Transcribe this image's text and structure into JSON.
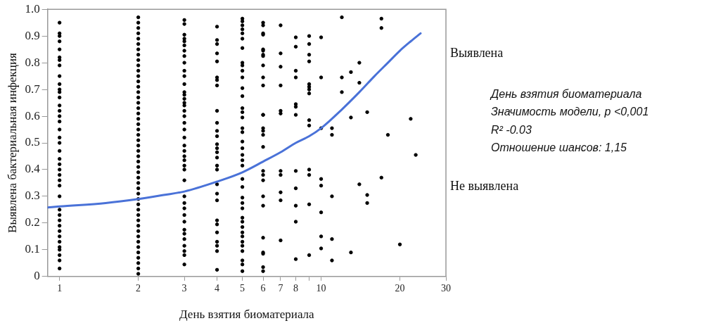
{
  "chart_data": {
    "type": "scatter",
    "xlabel": "День взятия биоматериала",
    "ylabel": "Выявлена бактериальная инфекция",
    "log": "x",
    "xlim": [
      0.9,
      30
    ],
    "xticks": [
      1,
      2,
      3,
      4,
      5,
      6,
      7,
      8,
      {
        "value": 9,
        "label": null
      },
      10,
      20,
      30
    ],
    "ylim": [
      0,
      1
    ],
    "yticks": [
      0,
      0.1,
      0.2,
      0.3,
      0.4,
      0.5,
      0.6,
      0.7,
      0.8,
      0.9,
      {
        "value": 1,
        "label": "1.0"
      }
    ],
    "grid": false,
    "legend": false,
    "marker": "circle",
    "annotations": [
      "Выявлена",
      "День взятия биоматериала",
      "Значимость модели, p <0,001",
      "R² -0.03",
      "Отношение шансов: 1,15",
      "Не выявлена"
    ],
    "series": [
      {
        "type": "scatter",
        "color": "#000000",
        "x": [
          1,
          1,
          1,
          1,
          1,
          1,
          1,
          1,
          1,
          1,
          1,
          1,
          1,
          1,
          1,
          1,
          1,
          1,
          1,
          1,
          1,
          1,
          1,
          1,
          1,
          1,
          1,
          1,
          1,
          1,
          1,
          1,
          1,
          1,
          1,
          1,
          1,
          1,
          1,
          1,
          2,
          2,
          2,
          2,
          2,
          2,
          2,
          2,
          2,
          2,
          2,
          2,
          2,
          2,
          2,
          2,
          2,
          2,
          2,
          2,
          2,
          2,
          2,
          2,
          2,
          2,
          2,
          2,
          2,
          2,
          2,
          2,
          2,
          2,
          2,
          2,
          2,
          2,
          2,
          2,
          2,
          2,
          2,
          2,
          2,
          2,
          2,
          2,
          2,
          3,
          3,
          3,
          3,
          3,
          3,
          3,
          3,
          3,
          3,
          3,
          3,
          3,
          3,
          3,
          3,
          3,
          3,
          3,
          3,
          3,
          3,
          3,
          3,
          3,
          3,
          3,
          3,
          3,
          3,
          3,
          3,
          3,
          3,
          3,
          3,
          3,
          3,
          3,
          3,
          3,
          4,
          4,
          4,
          4,
          4,
          4,
          4,
          4,
          4,
          4,
          4,
          4,
          4,
          4,
          4,
          4,
          4,
          4,
          4,
          4,
          4,
          4,
          4,
          4,
          4,
          4,
          4,
          4,
          5,
          5,
          5,
          5,
          5,
          5,
          5,
          5,
          5,
          5,
          5,
          5,
          5,
          5,
          5,
          5,
          5,
          5,
          5,
          5,
          5,
          5,
          5,
          5,
          5,
          5,
          5,
          5,
          5,
          5,
          5,
          5,
          5,
          5,
          5,
          5,
          5,
          5,
          5,
          6,
          6,
          6,
          6,
          6,
          6,
          6,
          6,
          6,
          6,
          6,
          6,
          6,
          6,
          6,
          6,
          6,
          6,
          6,
          6,
          6,
          6,
          6,
          6,
          6,
          6,
          6,
          7,
          7,
          7,
          7,
          7,
          7,
          7,
          7,
          7,
          7,
          7,
          8,
          8,
          8,
          8,
          8,
          8,
          8,
          8,
          8,
          8,
          8,
          8,
          9,
          9,
          9,
          9,
          9,
          9,
          9,
          9,
          9,
          9,
          9,
          9,
          9,
          9,
          10,
          10,
          10,
          10,
          10,
          10,
          10,
          10,
          11,
          11,
          11,
          11,
          11,
          12,
          12,
          12,
          13,
          13,
          13,
          14,
          14,
          14,
          15,
          15,
          15,
          17,
          17,
          17,
          18,
          20,
          22,
          23
        ],
        "values": [
          0.95,
          0.91,
          0.9,
          0.88,
          0.85,
          0.82,
          0.81,
          0.79,
          0.75,
          0.72,
          0.7,
          0.69,
          0.67,
          0.64,
          0.62,
          0.6,
          0.58,
          0.55,
          0.52,
          0.5,
          0.47,
          0.44,
          0.42,
          0.4,
          0.38,
          0.36,
          0.34,
          0.3,
          0.25,
          0.23,
          0.21,
          0.19,
          0.17,
          0.15,
          0.13,
          0.11,
          0.1,
          0.08,
          0.06,
          0.03,
          0.97,
          0.95,
          0.93,
          0.91,
          0.89,
          0.87,
          0.85,
          0.83,
          0.81,
          0.79,
          0.77,
          0.75,
          0.73,
          0.71,
          0.69,
          0.67,
          0.65,
          0.63,
          0.61,
          0.59,
          0.57,
          0.55,
          0.53,
          0.51,
          0.49,
          0.47,
          0.45,
          0.43,
          0.41,
          0.39,
          0.37,
          0.35,
          0.33,
          0.31,
          0.29,
          0.27,
          0.25,
          0.23,
          0.21,
          0.19,
          0.17,
          0.15,
          0.13,
          0.11,
          0.09,
          0.07,
          0.05,
          0.03,
          0.01,
          0.96,
          0.945,
          0.905,
          0.89,
          0.88,
          0.865,
          0.845,
          0.825,
          0.8,
          0.77,
          0.75,
          0.72,
          0.69,
          0.68,
          0.665,
          0.65,
          0.64,
          0.62,
          0.6,
          0.575,
          0.55,
          0.52,
          0.49,
          0.47,
          0.45,
          0.435,
          0.415,
          0.4,
          0.36,
          0.3,
          0.275,
          0.255,
          0.23,
          0.205,
          0.175,
          0.16,
          0.14,
          0.115,
          0.095,
          0.08,
          0.045,
          0.935,
          0.885,
          0.87,
          0.835,
          0.805,
          0.745,
          0.735,
          0.715,
          0.62,
          0.575,
          0.545,
          0.525,
          0.495,
          0.48,
          0.465,
          0.445,
          0.415,
          0.4,
          0.345,
          0.31,
          0.285,
          0.21,
          0.195,
          0.165,
          0.13,
          0.115,
          0.095,
          0.025,
          0.965,
          0.955,
          0.94,
          0.925,
          0.91,
          0.89,
          0.855,
          0.8,
          0.79,
          0.77,
          0.745,
          0.705,
          0.675,
          0.63,
          0.615,
          0.595,
          0.555,
          0.54,
          0.505,
          0.48,
          0.455,
          0.435,
          0.415,
          0.365,
          0.335,
          0.295,
          0.275,
          0.255,
          0.22,
          0.205,
          0.185,
          0.165,
          0.15,
          0.13,
          0.115,
          0.095,
          0.06,
          0.045,
          0.02,
          0.95,
          0.94,
          0.91,
          0.905,
          0.85,
          0.845,
          0.83,
          0.825,
          0.79,
          0.745,
          0.715,
          0.605,
          0.605,
          0.555,
          0.545,
          0.53,
          0.485,
          0.395,
          0.38,
          0.36,
          0.3,
          0.265,
          0.145,
          0.09,
          0.085,
          0.035,
          0.02,
          0.94,
          0.835,
          0.785,
          0.715,
          0.62,
          0.61,
          0.395,
          0.38,
          0.315,
          0.285,
          0.135,
          0.895,
          0.86,
          0.77,
          0.745,
          0.645,
          0.635,
          0.605,
          0.395,
          0.33,
          0.265,
          0.205,
          0.065,
          0.9,
          0.87,
          0.83,
          0.805,
          0.72,
          0.71,
          0.7,
          0.685,
          0.585,
          0.565,
          0.4,
          0.38,
          0.27,
          0.08,
          0.895,
          0.745,
          0.555,
          0.365,
          0.34,
          0.24,
          0.15,
          0.105,
          0.555,
          0.53,
          0.3,
          0.14,
          0.06,
          0.97,
          0.745,
          0.69,
          0.765,
          0.595,
          0.09,
          0.8,
          0.725,
          0.345,
          0.615,
          0.305,
          0.275,
          0.965,
          0.93,
          0.37,
          0.53,
          0.12,
          0.59,
          0.455
        ]
      },
      {
        "type": "line",
        "color": "#4a72d8",
        "marker": "none",
        "x": [
          0.9,
          1,
          1.5,
          2,
          2.5,
          3,
          4,
          5,
          6,
          7,
          8,
          9,
          10,
          12,
          14,
          16,
          18,
          20,
          22,
          24
        ],
        "values": [
          0.258,
          0.262,
          0.275,
          0.29,
          0.305,
          0.318,
          0.355,
          0.39,
          0.43,
          0.465,
          0.5,
          0.525,
          0.555,
          0.625,
          0.69,
          0.75,
          0.8,
          0.845,
          0.88,
          0.91
        ]
      }
    ]
  }
}
